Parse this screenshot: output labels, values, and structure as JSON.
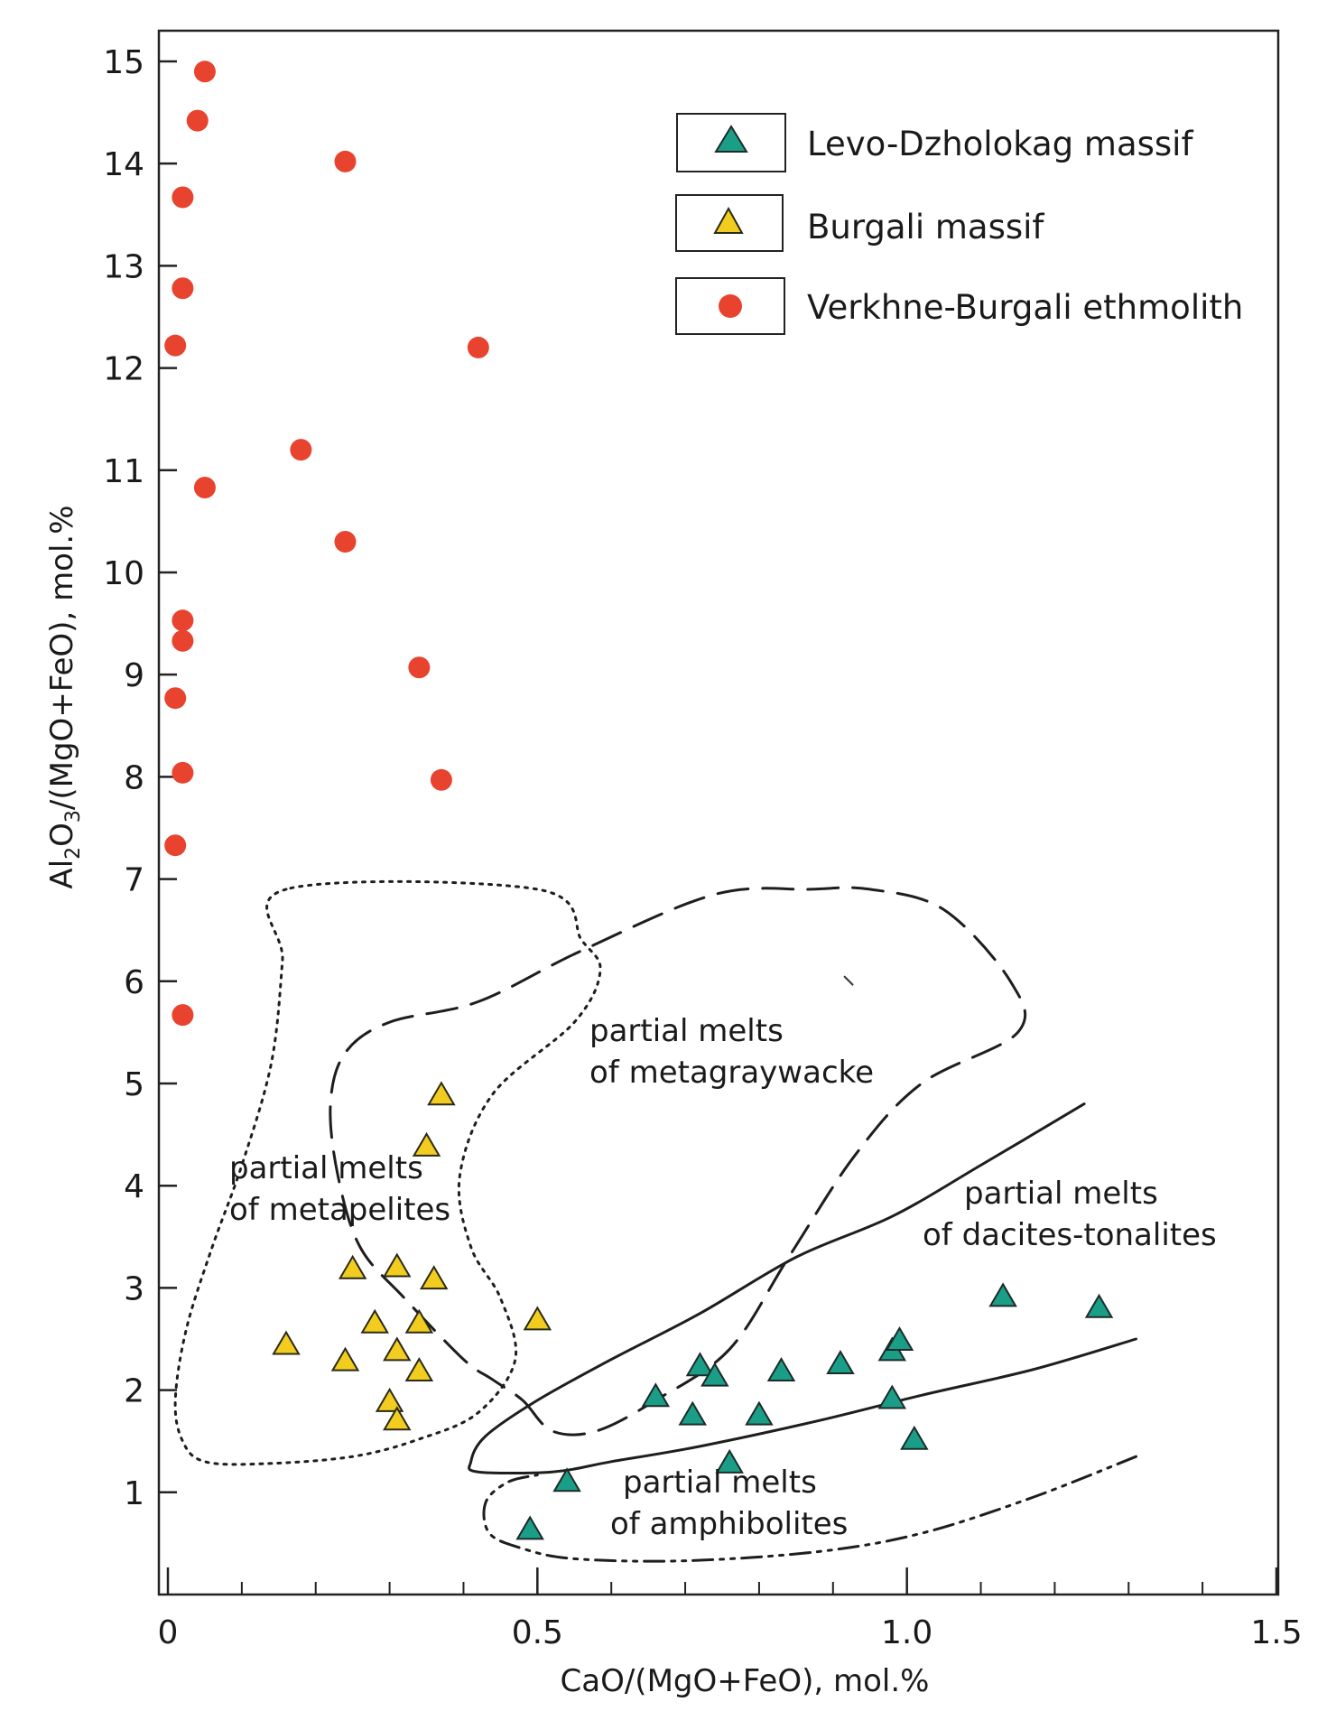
{
  "chart_data": {
    "type": "scatter",
    "title": "",
    "xlabel": "CaO/(MgO+FeO), mol.%",
    "ylabel_parts": [
      "Al",
      "2",
      "O",
      "3",
      "/(MgO+FeO), mol.%"
    ],
    "xlim": [
      0,
      1.5
    ],
    "ylim": [
      0,
      15.3
    ],
    "x_ticks": [
      0,
      0.5,
      1.0,
      1.5
    ],
    "x_tick_labels": [
      "0",
      "0.5",
      "1.0",
      "1.5"
    ],
    "x_minor_step": 0.1,
    "y_ticks": [
      1,
      2,
      3,
      4,
      5,
      6,
      7,
      8,
      9,
      10,
      11,
      12,
      13,
      14,
      15
    ],
    "y_tick_labels": [
      "1",
      "2",
      "3",
      "4",
      "5",
      "6",
      "7",
      "8",
      "9",
      "10",
      "11",
      "12",
      "13",
      "14",
      "15"
    ],
    "grid": false,
    "legend_position": "top-right",
    "series": [
      {
        "name": "Levo-Dzholokag massif",
        "marker": "triangle",
        "color": "#1a9e88",
        "points": [
          [
            0.54,
            1.12
          ],
          [
            0.49,
            0.65
          ],
          [
            0.66,
            1.95
          ],
          [
            0.71,
            1.77
          ],
          [
            0.72,
            2.25
          ],
          [
            0.74,
            2.15
          ],
          [
            0.76,
            1.3
          ],
          [
            0.8,
            1.77
          ],
          [
            0.83,
            2.2
          ],
          [
            0.91,
            2.27
          ],
          [
            0.98,
            2.4
          ],
          [
            0.99,
            2.5
          ],
          [
            0.98,
            1.93
          ],
          [
            1.01,
            1.53
          ],
          [
            1.13,
            2.93
          ],
          [
            1.26,
            2.82
          ]
        ]
      },
      {
        "name": "Burgali massif",
        "marker": "triangle",
        "color": "#f2cc1f",
        "points": [
          [
            0.16,
            2.46
          ],
          [
            0.24,
            2.3
          ],
          [
            0.25,
            3.2
          ],
          [
            0.28,
            2.67
          ],
          [
            0.3,
            1.9
          ],
          [
            0.31,
            1.72
          ],
          [
            0.31,
            2.4
          ],
          [
            0.31,
            3.22
          ],
          [
            0.34,
            2.2
          ],
          [
            0.34,
            2.67
          ],
          [
            0.36,
            3.1
          ],
          [
            0.35,
            4.4
          ],
          [
            0.37,
            4.9
          ],
          [
            0.5,
            2.7
          ]
        ]
      },
      {
        "name": "Verkhne-Burgali ethmolith",
        "marker": "circle",
        "color": "#e8432e",
        "points": [
          [
            0.05,
            14.9
          ],
          [
            0.04,
            14.42
          ],
          [
            0.02,
            13.67
          ],
          [
            0.02,
            12.78
          ],
          [
            0.01,
            12.22
          ],
          [
            0.24,
            14.02
          ],
          [
            0.42,
            12.2
          ],
          [
            0.18,
            11.2
          ],
          [
            0.05,
            10.83
          ],
          [
            0.24,
            10.3
          ],
          [
            0.02,
            9.53
          ],
          [
            0.02,
            9.33
          ],
          [
            0.01,
            8.77
          ],
          [
            0.34,
            9.07
          ],
          [
            0.02,
            8.04
          ],
          [
            0.37,
            7.97
          ],
          [
            0.01,
            7.33
          ],
          [
            0.02,
            5.67
          ]
        ]
      }
    ],
    "fields": [
      {
        "name": "metapelites",
        "line_style": "dotted",
        "label_lines": [
          "partial melts",
          "of metapelites"
        ]
      },
      {
        "name": "metagraywacke",
        "line_style": "dashed",
        "label_lines": [
          "partial melts",
          "of metagraywacke"
        ]
      },
      {
        "name": "dacites-tonalites",
        "line_style": "solid",
        "label_lines": [
          "partial melts",
          "of dacites-tonalites"
        ]
      },
      {
        "name": "amphibolites",
        "line_style": "dash-dot-dot",
        "label_lines": [
          "partial melts",
          "of amphibolites"
        ]
      }
    ]
  }
}
